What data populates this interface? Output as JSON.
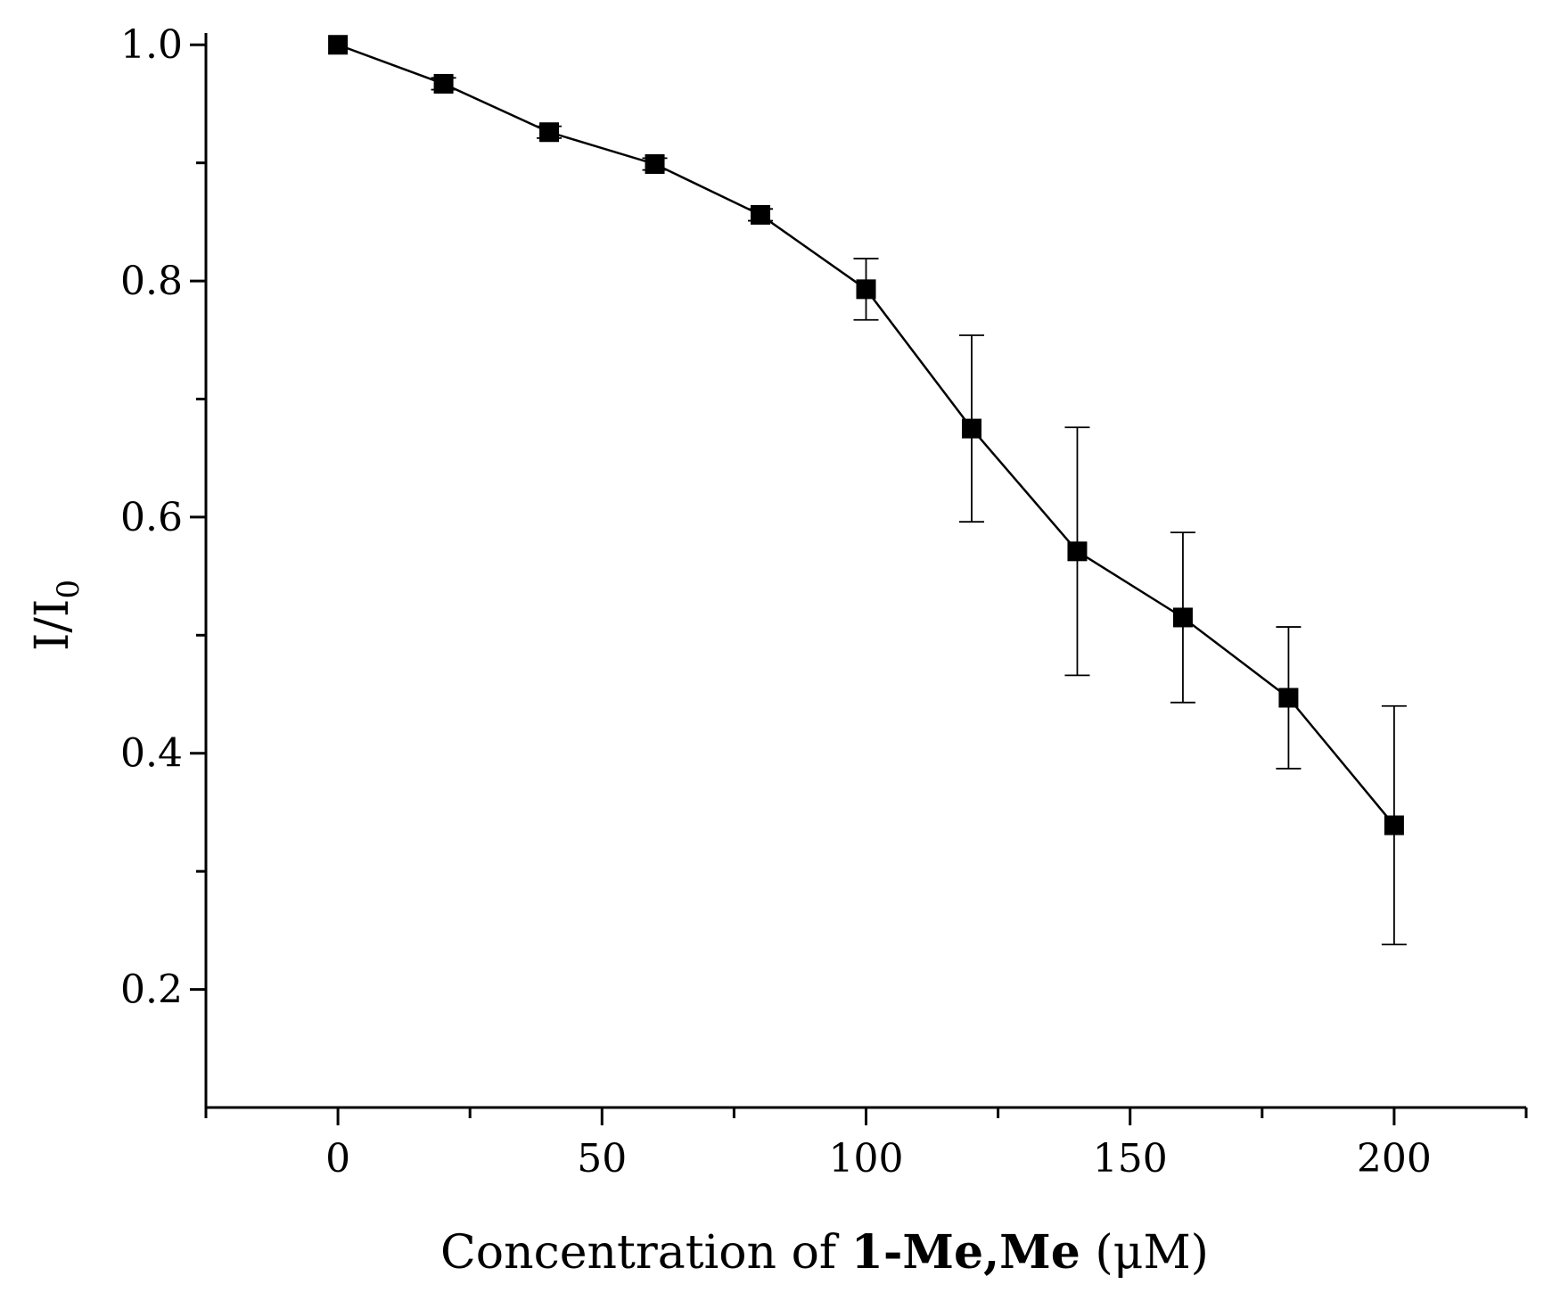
{
  "chart_data": {
    "type": "scatter",
    "title": "",
    "xlabel": {
      "prefix": "Concentration of ",
      "bold": "1-Me,Me",
      "suffix": " (μM)"
    },
    "ylabel": {
      "main": "I/I",
      "subscript": "0"
    },
    "xlim": [
      -25,
      225
    ],
    "ylim": [
      0.1,
      1.01
    ],
    "x_major_ticks": [
      0,
      50,
      100,
      150,
      200
    ],
    "x_tick_labels": [
      "0",
      "50",
      "100",
      "150",
      "200"
    ],
    "x_minor_ticks": [
      -25,
      25,
      75,
      125,
      175,
      225
    ],
    "y_major_ticks": [
      0.2,
      0.4,
      0.6,
      0.8,
      1.0
    ],
    "y_tick_labels": [
      "0.2",
      "0.4",
      "0.6",
      "0.8",
      "1.0"
    ],
    "y_minor_ticks": [
      0.3,
      0.5,
      0.7,
      0.9
    ],
    "grid": false,
    "series": [
      {
        "name": "I/I0",
        "marker": "square",
        "color": "#000000",
        "x": [
          0,
          20,
          40,
          60,
          80,
          100,
          120,
          140,
          160,
          180,
          200
        ],
        "y": [
          1.0,
          0.967,
          0.926,
          0.899,
          0.856,
          0.793,
          0.675,
          0.571,
          0.515,
          0.447,
          0.339
        ],
        "err": [
          0.0,
          0.005,
          0.005,
          0.005,
          0.005,
          0.026,
          0.079,
          0.105,
          0.072,
          0.06,
          0.101
        ]
      }
    ]
  }
}
